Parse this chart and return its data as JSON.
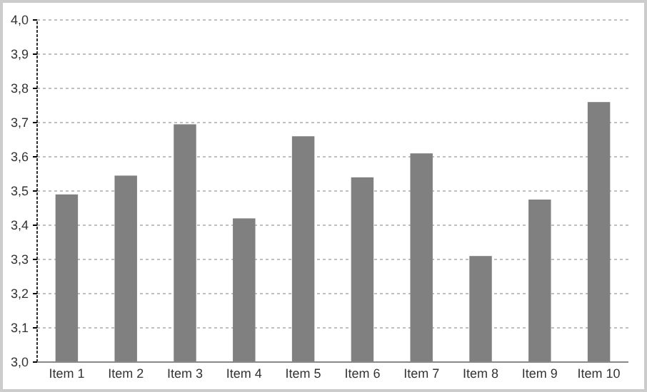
{
  "chart_data": {
    "type": "bar",
    "categories": [
      "Item 1",
      "Item 2",
      "Item 3",
      "Item 4",
      "Item 5",
      "Item 6",
      "Item 7",
      "Item 8",
      "Item 9",
      "Item 10"
    ],
    "values": [
      3.49,
      3.545,
      3.695,
      3.42,
      3.66,
      3.54,
      3.61,
      3.31,
      3.475,
      3.76
    ],
    "color": "#808080",
    "ylim": [
      3.0,
      4.0
    ],
    "yticks": [
      {
        "value": 3.0,
        "label": "3,0"
      },
      {
        "value": 3.1,
        "label": "3,1"
      },
      {
        "value": 3.2,
        "label": "3,2"
      },
      {
        "value": 3.3,
        "label": "3,3"
      },
      {
        "value": 3.4,
        "label": "3,4"
      },
      {
        "value": 3.5,
        "label": "3,5"
      },
      {
        "value": 3.6,
        "label": "3,6"
      },
      {
        "value": 3.7,
        "label": "3,7"
      },
      {
        "value": 3.8,
        "label": "3,8"
      },
      {
        "value": 3.9,
        "label": "3,9"
      },
      {
        "value": 4.0,
        "label": "4,0"
      }
    ],
    "grid": "y"
  }
}
